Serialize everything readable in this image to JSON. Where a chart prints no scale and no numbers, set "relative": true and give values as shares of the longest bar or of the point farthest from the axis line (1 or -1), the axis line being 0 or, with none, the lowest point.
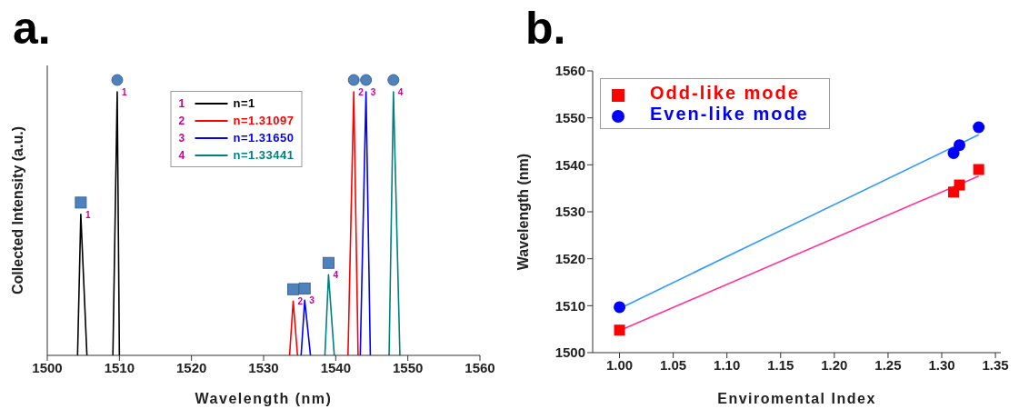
{
  "chart_data": [
    {
      "type": "line",
      "title": "a.",
      "xlabel": "Wavelength (nm)",
      "ylabel": "Collected Intensity (a.u.)",
      "relative": true,
      "xlim": [
        1500,
        1560
      ],
      "xticks": [
        1500,
        1510,
        1520,
        1530,
        1540,
        1550,
        1560
      ],
      "legend": "top",
      "line_style": "solid",
      "marker": "none",
      "series": [
        {
          "name": "n=1",
          "color": "#000000",
          "x": [
            1504.2,
            1504.65,
            1505.5,
            1507.3,
            1509.1,
            1509.7,
            1510.0
          ],
          "values": [
            0,
            0.535,
            0,
            null,
            0,
            1,
            0
          ]
        },
        {
          "name": "n=1.31097",
          "color": "#ff0000",
          "x": [
            1533.6,
            1534.1,
            1534.7,
            1538.2,
            1541.7,
            1542.5,
            1543.1
          ],
          "values": [
            0,
            0.206,
            0,
            null,
            0,
            1,
            0
          ]
        },
        {
          "name": "n=1.31650",
          "color": "#0000ff",
          "x": [
            1535.2,
            1535.7,
            1536.5,
            1540.0,
            1543.4,
            1544.2,
            1544.8
          ],
          "values": [
            0,
            0.209,
            0,
            null,
            0,
            1,
            0
          ]
        },
        {
          "name": "n=1.33441",
          "color": "#008080",
          "x": [
            1538.5,
            1539.0,
            1539.8,
            1543.6,
            1547.4,
            1548.0,
            1548.9
          ],
          "values": [
            0,
            0.306,
            0,
            null,
            0,
            1,
            0
          ]
        }
      ],
      "annotations": [
        {
          "text": "1",
          "x": 1504.65,
          "y": 0.535
        },
        {
          "text": "2",
          "x": 1534.1,
          "y": 0.206
        },
        {
          "text": "3",
          "x": 1535.7,
          "y": 0.209
        },
        {
          "text": "4",
          "x": 1539.0,
          "y": 0.306
        },
        {
          "text": "1",
          "x": 1509.7,
          "y": 1
        },
        {
          "text": "2",
          "x": 1542.5,
          "y": 1
        },
        {
          "text": "3",
          "x": 1544.2,
          "y": 1
        },
        {
          "text": "4",
          "x": 1548.0,
          "y": 1
        },
        "1",
        "2",
        "3",
        "4"
      ]
    },
    {
      "type": "scatter",
      "title": "b.",
      "xlabel": "Enviromental Index",
      "ylabel": "Wavelength (nm)",
      "xlim": [
        0.975,
        1.355
      ],
      "xticks": [
        {
          "value": 1.0,
          "label": "1.00"
        },
        1.05,
        {
          "value": 1.1,
          "label": "1.10"
        },
        1.15,
        {
          "value": 1.2,
          "label": "1.20"
        },
        1.25,
        {
          "value": 1.3,
          "label": "1.30"
        },
        1.35
      ],
      "ylim": [
        1500,
        1560
      ],
      "yticks": [
        1500,
        1510,
        1520,
        1530,
        1540,
        1550,
        1560
      ],
      "legend": "top left",
      "series": [
        {
          "type": "line",
          "color": "#ff3399",
          "marker": "none",
          "line_style": "solid",
          "x": [
            1.0,
            1.3344
          ],
          "values": [
            1504.7,
            1537.6
          ]
        },
        {
          "type": "line",
          "color": "#3399ff",
          "marker": "none",
          "line_style": "solid",
          "x": [
            1.0,
            1.3344
          ],
          "values": [
            1509.4,
            1546.4
          ]
        },
        {
          "name": "Odd-like mode",
          "color": "#ff0000",
          "marker": "square",
          "x": [
            1.0,
            1.311,
            1.3165,
            1.3344
          ],
          "values": [
            1504.8,
            1534.2,
            1535.7,
            1539.0
          ]
        },
        {
          "name": "Even-like mode",
          "color": "#0000ff",
          "marker": "circle",
          "x": [
            1.0,
            1.311,
            1.3165,
            1.3344
          ],
          "values": [
            1509.7,
            1542.5,
            1544.2,
            1548.0
          ]
        }
      ]
    }
  ]
}
